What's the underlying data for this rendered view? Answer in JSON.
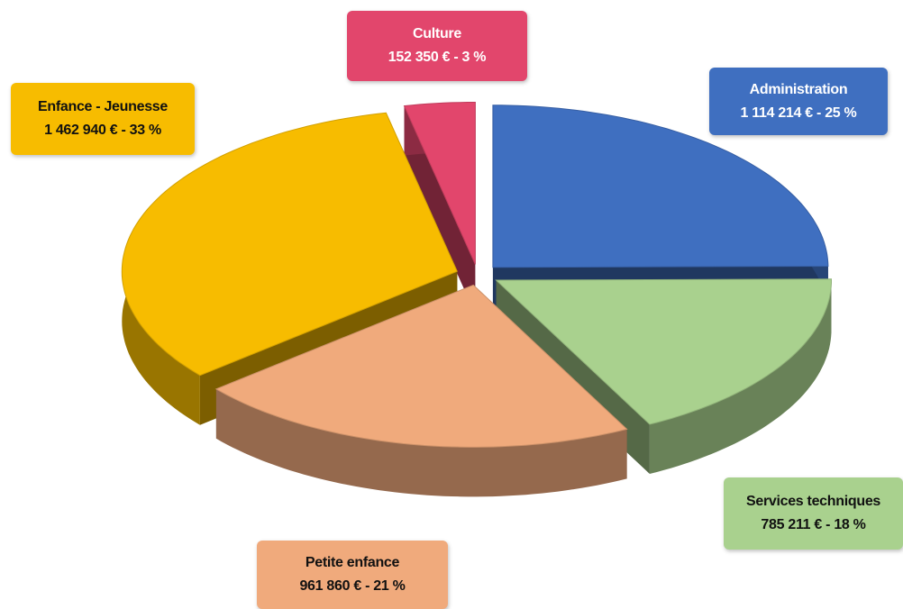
{
  "chart_data": {
    "type": "pie3d",
    "categories": [
      "Administration",
      "Services techniques",
      "Petite enfance",
      "Enfance - Jeunesse",
      "Culture"
    ],
    "values": [
      1114214,
      785211,
      961860,
      1462940,
      152350
    ],
    "value_labels": [
      "1 114 214 € -  25 %",
      "785 211 € -  18 %",
      "961 860 € -  21 %",
      "1 462 940  € - 33 %",
      "152 350 € -  3 %"
    ],
    "colors": [
      "#3f6fc0",
      "#a9d18e",
      "#f0aa7c",
      "#f7bc00",
      "#e2466c"
    ]
  }
}
